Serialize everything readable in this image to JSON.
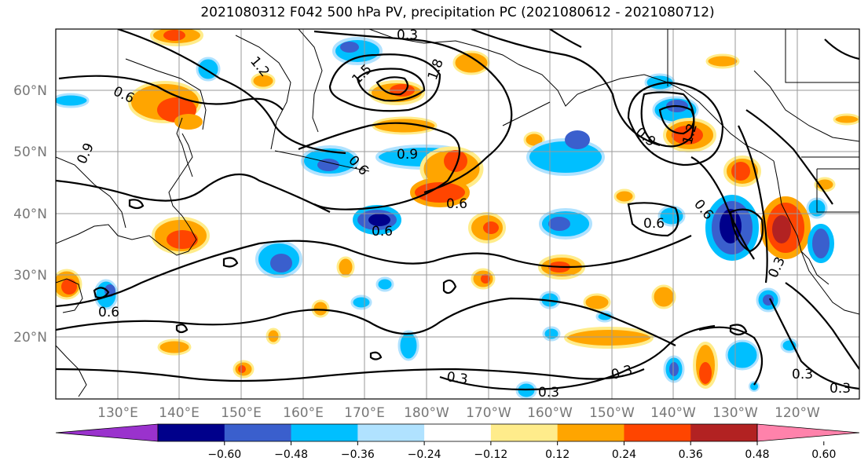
{
  "title": "2021080312 F042 500 hPa PV, precipitation PC (2021080612 - 2021080712)",
  "map": {
    "lon_labels": [
      "130°E",
      "140°E",
      "150°E",
      "160°E",
      "170°E",
      "180°W",
      "170°W",
      "160°W",
      "150°W",
      "140°W",
      "130°W",
      "120°W"
    ],
    "lat_labels": [
      "60°N",
      "50°N",
      "40°N",
      "30°N",
      "20°N"
    ],
    "contour_labels": [
      "0.3",
      "1.2",
      "1.5",
      "1.8",
      "0.6",
      "0.9",
      "0.9",
      "0.6",
      "0.6",
      "0.6",
      "0.6",
      "0.9",
      "0.6",
      "0.3",
      "0.3",
      "0.3",
      "0.3",
      "0.3",
      "0.6",
      "0.3",
      "1.2"
    ]
  },
  "colorbar": {
    "colors": [
      "#9a32cd",
      "#00008b",
      "#3a5fcd",
      "#00bfff",
      "#b0e2ff",
      "#ffffff",
      "#ffec8b",
      "#ffa500",
      "#ff4500",
      "#b22222",
      "#ff82ab"
    ],
    "tick_labels": [
      "−0.60",
      "−0.48",
      "−0.36",
      "−0.24",
      "−0.12",
      "0.12",
      "0.24",
      "0.36",
      "0.48",
      "0.60"
    ]
  }
}
